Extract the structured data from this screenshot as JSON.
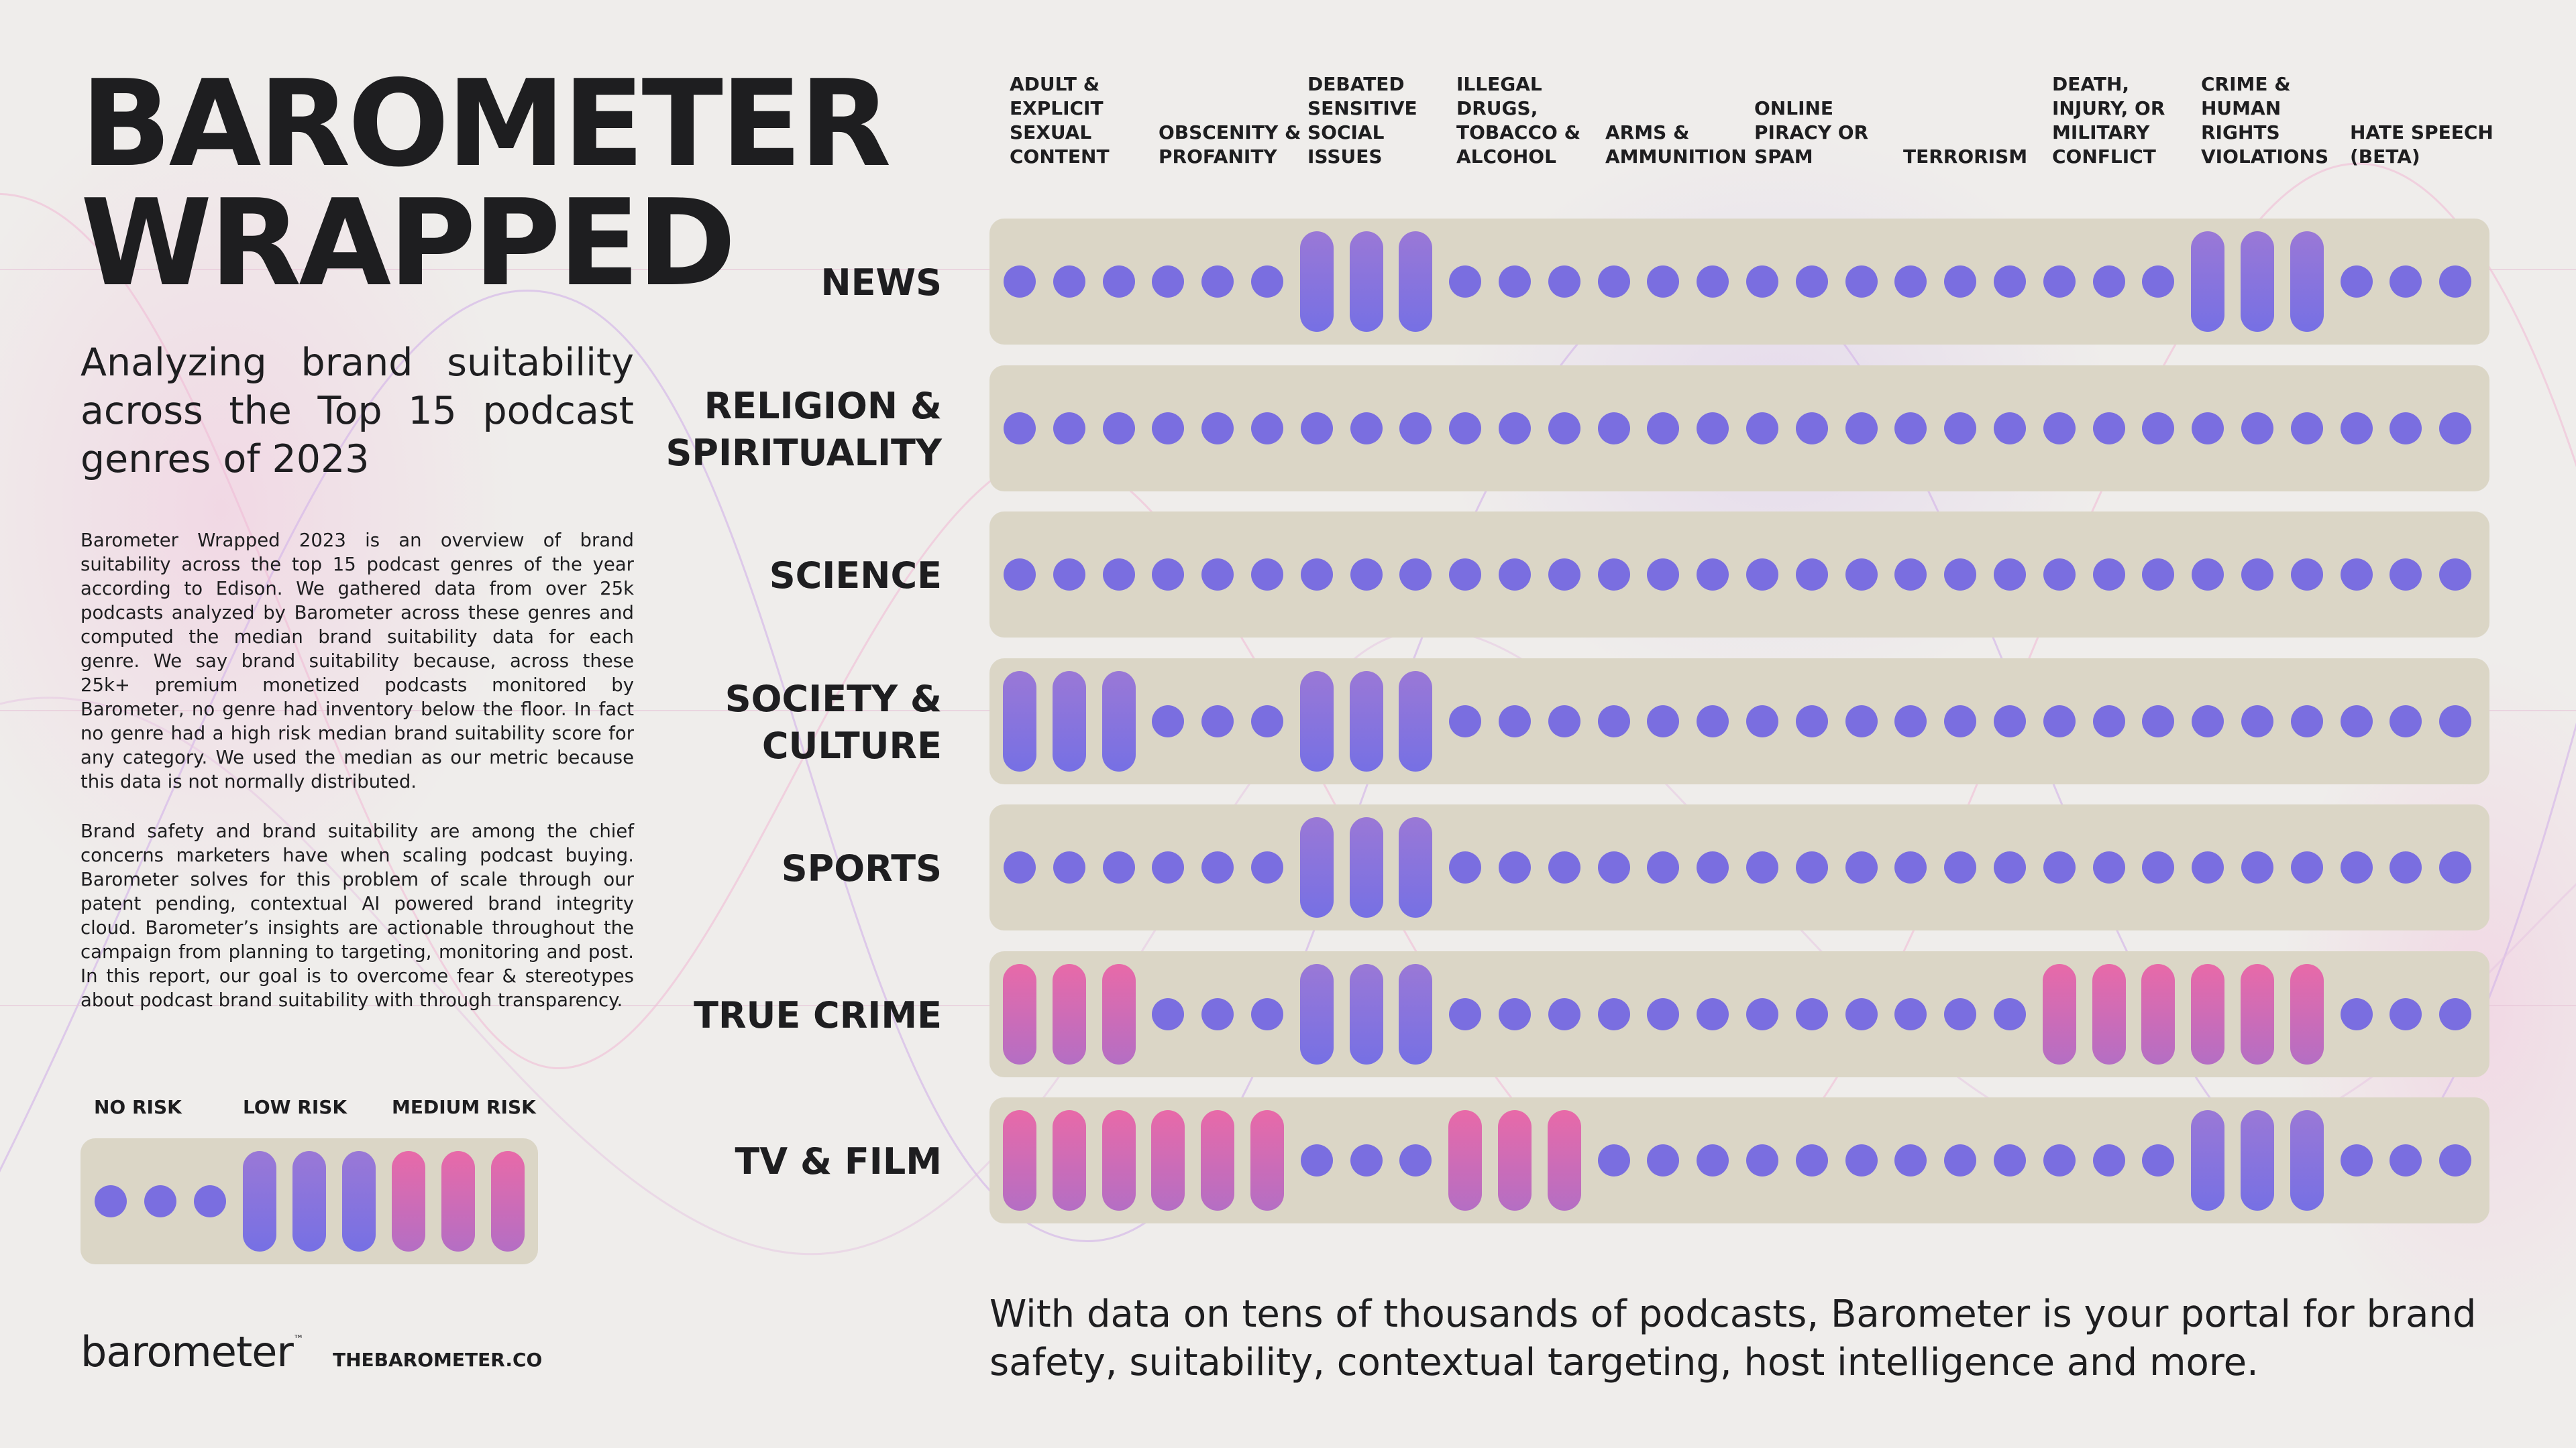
{
  "title": "BAROMETER\nWRAPPED",
  "subtitle": "Analyzing brand suitability across the Top 15 podcast genres of 2023",
  "paragraphs": [
    "Barometer Wrapped 2023 is an overview of brand suitability across the top 15 podcast genres of the year according to Edison. We gathered data from over 25k podcasts analyzed by Barometer across these genres and computed the median brand suitability data for each genre. We say brand suitability because, across these 25k+ premium monetized podcasts monitored by Barometer, no genre had inventory below the floor. In fact no genre had a high risk median brand suitability score for any category. We used the median as our metric because this data is not normally distributed.",
    "Brand safety and brand suitability are among the chief concerns marketers have when scaling podcast buying. Barometer solves for this problem of scale through our patent pending, contextual AI powered brand integrity cloud. Barometer’s insights are actionable throughout the campaign from planning to targeting, monitoring and post. In this report, our goal is to overcome fear & stereotypes about podcast brand suitability with through transparency."
  ],
  "legend": {
    "labels": [
      "NO RISK",
      "LOW RISK",
      "MEDIUM RISK"
    ],
    "levels": [
      "none",
      "none",
      "none",
      "low",
      "low",
      "low",
      "medium",
      "medium",
      "medium"
    ]
  },
  "brand": {
    "logo": "barometer",
    "trademark": "™",
    "site": "THEBAROMETER.CO"
  },
  "categories": [
    "ADULT & EXPLICIT SEXUAL CONTENT",
    "OBSCENITY & PROFANITY",
    "DEBATED SENSITIVE SOCIAL ISSUES",
    "ILLEGAL DRUGS, TOBACCO & ALCOHOL",
    "ARMS & AMMUNITION",
    "ONLINE PIRACY OR SPAM",
    "TERRORISM",
    "DEATH, INJURY, OR MILITARY CONFLICT",
    "CRIME & HUMAN RIGHTS VIOLATIONS",
    "HATE SPEECH (BETA)"
  ],
  "risk_levels": [
    "none",
    "low",
    "medium"
  ],
  "genres": [
    {
      "name": "NEWS",
      "risk": [
        "none",
        "none",
        "low",
        "none",
        "none",
        "none",
        "none",
        "none",
        "low",
        "none"
      ]
    },
    {
      "name": "RELIGION &\nSPIRITUALITY",
      "risk": [
        "none",
        "none",
        "none",
        "none",
        "none",
        "none",
        "none",
        "none",
        "none",
        "none"
      ]
    },
    {
      "name": "SCIENCE",
      "risk": [
        "none",
        "none",
        "none",
        "none",
        "none",
        "none",
        "none",
        "none",
        "none",
        "none"
      ]
    },
    {
      "name": "SOCIETY &\nCULTURE",
      "risk": [
        "low",
        "none",
        "low",
        "none",
        "none",
        "none",
        "none",
        "none",
        "none",
        "none"
      ]
    },
    {
      "name": "SPORTS",
      "risk": [
        "none",
        "none",
        "low",
        "none",
        "none",
        "none",
        "none",
        "none",
        "none",
        "none"
      ]
    },
    {
      "name": "TRUE CRIME",
      "risk": [
        "medium",
        "none",
        "low",
        "none",
        "none",
        "none",
        "none",
        "medium",
        "medium",
        "none"
      ]
    },
    {
      "name": "TV & FILM",
      "risk": [
        "medium",
        "medium",
        "none",
        "medium",
        "none",
        "none",
        "none",
        "none",
        "low",
        "none"
      ]
    }
  ],
  "footer": "With data on tens of thousands of podcasts, Barometer is your portal for brand safety, suitability, contextual targeting, host intelligence and more.",
  "colors": {
    "background": "#efedeb",
    "panel": "#dbd6c6",
    "no_risk": "#7a6ee0",
    "low_risk_top": "#9a78d6",
    "low_risk_bottom": "#7670e4",
    "medium_risk_top": "#e86aa8",
    "medium_risk_bottom": "#b46ec4"
  }
}
